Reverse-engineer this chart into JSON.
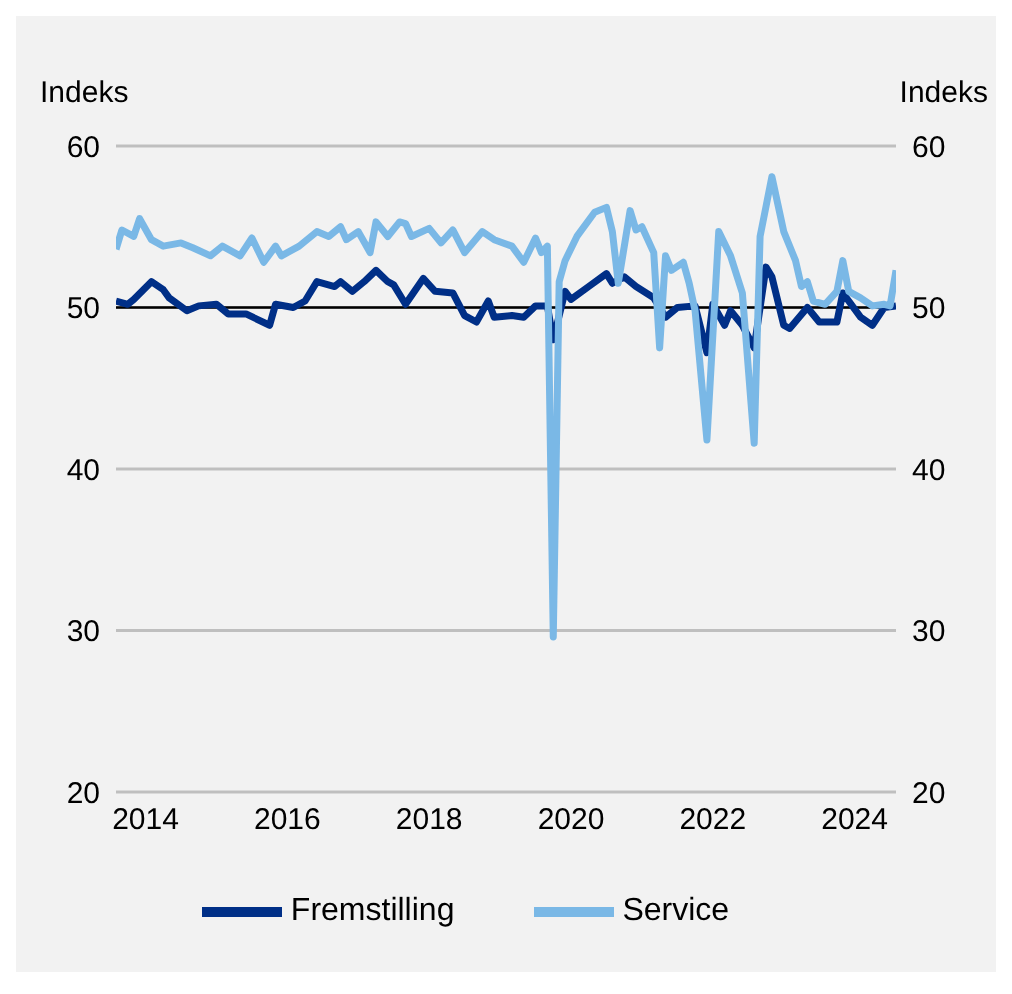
{
  "chart_data": {
    "type": "line",
    "ylabel": "Indeks",
    "y2label": "Indeks",
    "xlim": [
      "2014-02",
      "2025-02"
    ],
    "xticks": [
      {
        "value": "2014-07",
        "label": "2014"
      },
      {
        "value": "2016-07",
        "label": "2016"
      },
      {
        "value": "2018-07",
        "label": "2018"
      },
      {
        "value": "2020-07",
        "label": "2020"
      },
      {
        "value": "2022-07",
        "label": "2022"
      },
      {
        "value": "2024-07",
        "label": "2024"
      }
    ],
    "ylim": [
      20,
      60
    ],
    "yticks": [
      20,
      30,
      40,
      50,
      60
    ],
    "y2lim": [
      20,
      60
    ],
    "y2ticks": [
      20,
      30,
      40,
      50,
      60
    ],
    "grid": "y",
    "legend": "bottom",
    "marker": "none",
    "line_style": "solid",
    "ref_lines": [
      {
        "axis": "y",
        "value": 50,
        "color": "#000000"
      }
    ],
    "series": [
      {
        "name": "Fremstilling",
        "color": "#002f87",
        "x": [
          "2014-02",
          "2014-04",
          "2014-05",
          "2014-08",
          "2014-10",
          "2014-11",
          "2015-02",
          "2015-04",
          "2015-07",
          "2015-09",
          "2015-12",
          "2016-04",
          "2016-05",
          "2016-08",
          "2016-10",
          "2016-12",
          "2017-03",
          "2017-04",
          "2017-06",
          "2017-08",
          "2017-10",
          "2017-12",
          "2018-01",
          "2018-03",
          "2018-06",
          "2018-08",
          "2018-11",
          "2019-01",
          "2019-03",
          "2019-05",
          "2019-06",
          "2019-09",
          "2019-11",
          "2020-01",
          "2020-03",
          "2020-04",
          "2020-06",
          "2020-07",
          "2020-10",
          "2021-01",
          "2021-02",
          "2021-04",
          "2021-06",
          "2021-09",
          "2021-11",
          "2022-01",
          "2022-04",
          "2022-06",
          "2022-07",
          "2022-09",
          "2022-10",
          "2022-12",
          "2023-02",
          "2023-04",
          "2023-05",
          "2023-07",
          "2023-08",
          "2023-11",
          "2024-01",
          "2024-04",
          "2024-05",
          "2024-08",
          "2024-10",
          "2024-12",
          "2025-02"
        ],
        "values": [
          50.4,
          50.2,
          50.5,
          51.6,
          51.1,
          50.6,
          49.8,
          50.1,
          50.2,
          49.6,
          49.6,
          48.9,
          50.2,
          50.0,
          50.4,
          51.6,
          51.3,
          51.6,
          51.0,
          51.6,
          52.3,
          51.6,
          51.4,
          50.2,
          51.8,
          51.0,
          50.9,
          49.5,
          49.1,
          50.4,
          49.4,
          49.5,
          49.4,
          50.1,
          50.1,
          48.0,
          51.0,
          50.5,
          51.3,
          52.1,
          51.5,
          51.9,
          51.3,
          50.6,
          49.4,
          50.0,
          50.1,
          47.2,
          50.2,
          48.9,
          49.8,
          48.9,
          47.5,
          52.5,
          51.9,
          48.9,
          48.7,
          50.0,
          49.1,
          49.1,
          50.9,
          49.4,
          48.9,
          50.0,
          50.1
        ]
      },
      {
        "name": "Service",
        "color": "#7ab8e6",
        "x": [
          "2014-02",
          "2014-03",
          "2014-05",
          "2014-06",
          "2014-08",
          "2014-10",
          "2015-01",
          "2015-03",
          "2015-06",
          "2015-08",
          "2015-11",
          "2016-01",
          "2016-03",
          "2016-05",
          "2016-06",
          "2016-09",
          "2016-12",
          "2017-02",
          "2017-04",
          "2017-05",
          "2017-07",
          "2017-09",
          "2017-10",
          "2017-12",
          "2018-02",
          "2018-03",
          "2018-04",
          "2018-07",
          "2018-09",
          "2018-11",
          "2019-01",
          "2019-04",
          "2019-06",
          "2019-09",
          "2019-11",
          "2020-01",
          "2020-02",
          "2020-03",
          "2020-04",
          "2020-05",
          "2020-06",
          "2020-08",
          "2020-11",
          "2021-01",
          "2021-02",
          "2021-03",
          "2021-05",
          "2021-06",
          "2021-07",
          "2021-09",
          "2021-10",
          "2021-11",
          "2021-12",
          "2022-02",
          "2022-03",
          "2022-04",
          "2022-06",
          "2022-08",
          "2022-10",
          "2022-12",
          "2023-02",
          "2023-03",
          "2023-05",
          "2023-07",
          "2023-09",
          "2023-10",
          "2023-11",
          "2023-12",
          "2024-02",
          "2024-04",
          "2024-05",
          "2024-06",
          "2024-08",
          "2024-10",
          "2024-12",
          "2025-01",
          "2025-02"
        ],
        "values": [
          53.6,
          54.8,
          54.4,
          55.5,
          54.2,
          53.8,
          54.0,
          53.7,
          53.2,
          53.8,
          53.2,
          54.3,
          52.8,
          53.8,
          53.2,
          53.8,
          54.7,
          54.4,
          55.0,
          54.2,
          54.7,
          53.4,
          55.3,
          54.4,
          55.3,
          55.2,
          54.4,
          54.9,
          54.0,
          54.8,
          53.4,
          54.7,
          54.2,
          53.8,
          52.8,
          54.3,
          53.4,
          53.8,
          29.6,
          51.6,
          52.9,
          54.4,
          55.9,
          56.2,
          54.7,
          51.5,
          56.0,
          54.8,
          55.0,
          53.4,
          47.5,
          53.2,
          52.3,
          52.8,
          51.5,
          49.8,
          41.8,
          54.7,
          53.2,
          50.9,
          41.6,
          54.4,
          58.1,
          54.7,
          52.9,
          51.3,
          51.6,
          50.4,
          50.2,
          51.0,
          52.9,
          51.0,
          50.6,
          50.1,
          50.2,
          50.1,
          52.3
        ]
      }
    ]
  }
}
